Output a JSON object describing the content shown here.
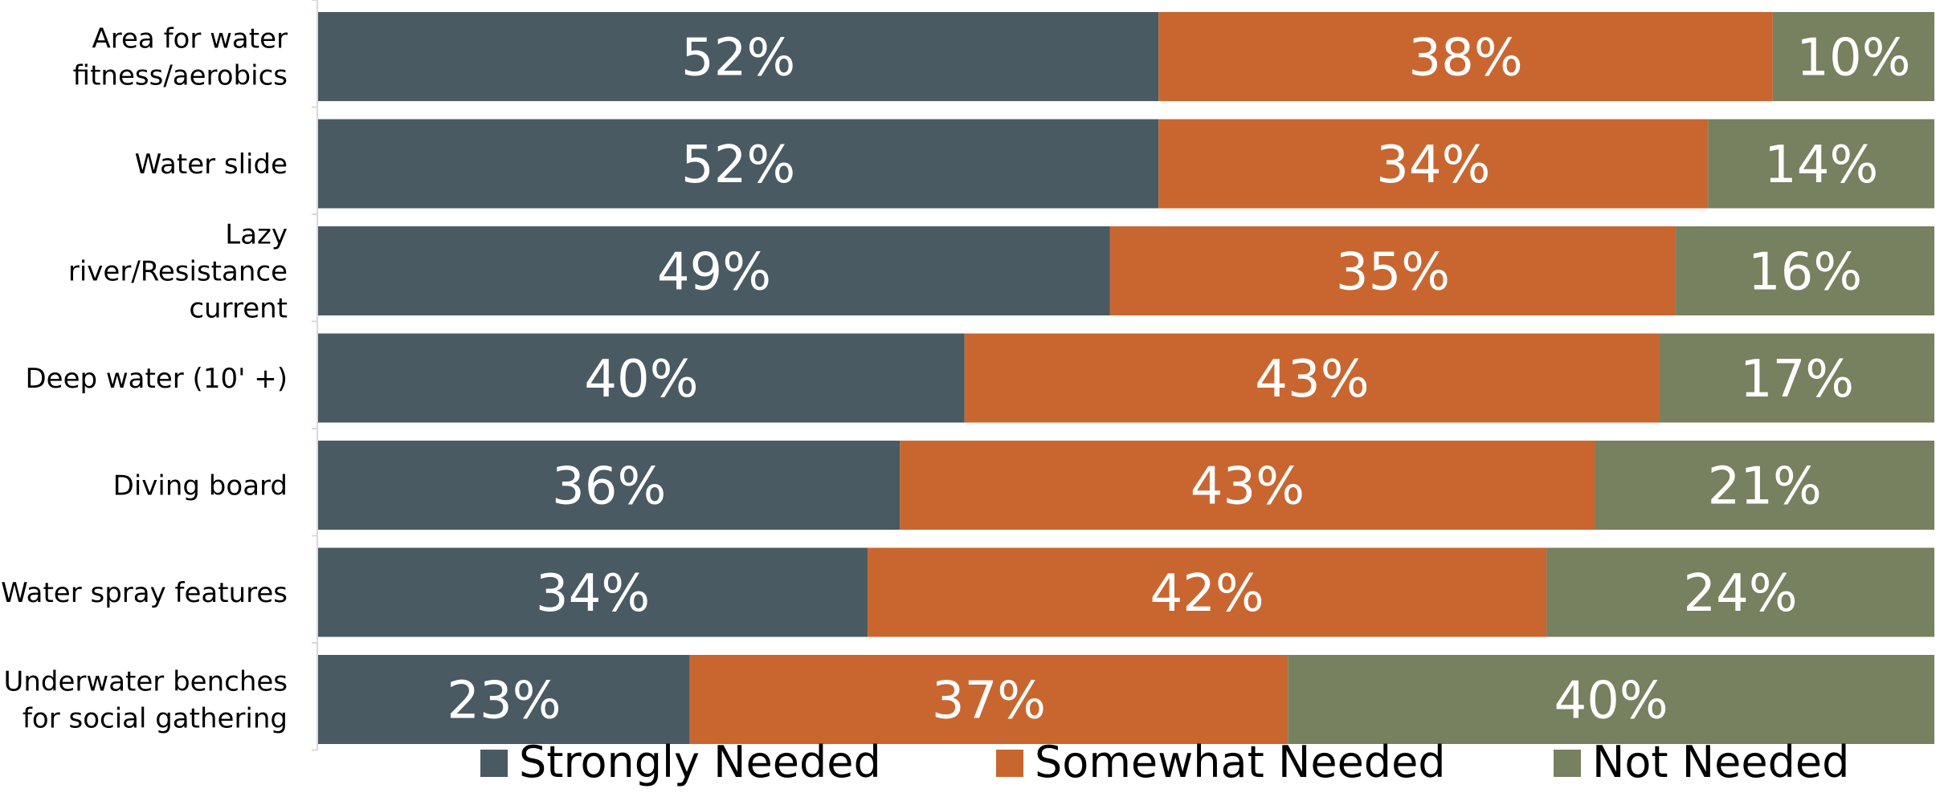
{
  "chart_data": {
    "type": "bar",
    "orientation": "horizontal",
    "stacked": true,
    "categories": [
      "Area for water fitness/aerobics",
      "Water slide",
      "Lazy river/Resistance current",
      "Deep water (10' +)",
      "Diving board",
      "Water spray features",
      "Underwater benches for social gathering"
    ],
    "series": [
      {
        "name": "Strongly Needed",
        "color": "#4a5a62",
        "values": [
          52,
          52,
          49,
          40,
          36,
          34,
          23
        ]
      },
      {
        "name": "Somewhat Needed",
        "color": "#c96630",
        "values": [
          38,
          34,
          35,
          43,
          43,
          42,
          37
        ]
      },
      {
        "name": "Not Needed",
        "color": "#77805f",
        "values": [
          10,
          14,
          16,
          17,
          21,
          24,
          40
        ]
      }
    ],
    "value_suffix": "%",
    "xlim": [
      0,
      100
    ],
    "grid": false,
    "legend_position": "bottom"
  }
}
